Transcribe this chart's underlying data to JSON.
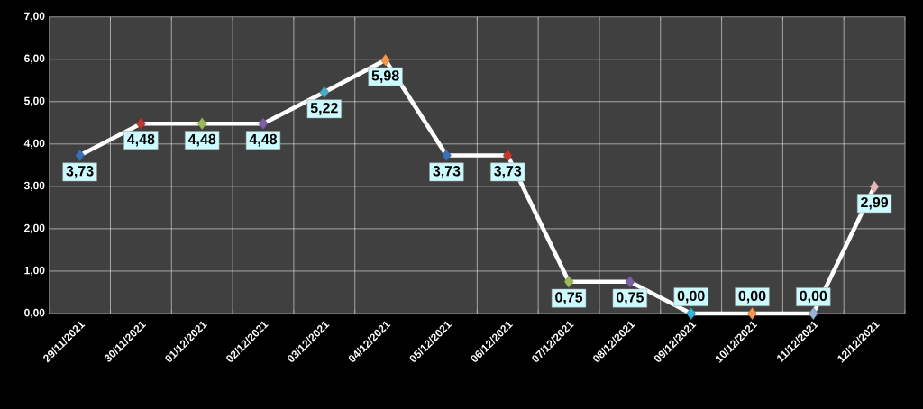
{
  "chart_data": {
    "type": "line",
    "categories": [
      "29/11/2021",
      "30/11/2021",
      "01/12/2021",
      "02/12/2021",
      "03/12/2021",
      "04/12/2021",
      "05/12/2021",
      "06/12/2021",
      "07/12/2021",
      "08/12/2021",
      "09/12/2021",
      "10/12/2021",
      "11/12/2021",
      "12/12/2021"
    ],
    "series": [
      {
        "color": "#ffffff",
        "values": [
          3.73,
          4.48,
          4.48,
          4.48,
          5.22,
          5.98,
          3.73,
          3.73,
          0.75,
          0.75,
          0,
          0,
          0,
          2.99
        ],
        "colors": [
          "#3d6fb6",
          "#c0392b",
          "#9bbb59",
          "#7f5fa8",
          "#4bacc6",
          "#f79646",
          "#3d6fb6",
          "#c0392b",
          "#9bbb59",
          "#7f5fa8",
          "#31b6e0",
          "#f79646",
          "#95b3d7",
          "#e6b9b8"
        ],
        "value_labels": [
          "3,73",
          "4,48",
          "4,48",
          "4,48",
          "5,22",
          "5,98",
          "3,73",
          "3,73",
          "0,75",
          "0,75",
          "0,00",
          "0,00",
          "0,00",
          "2,99"
        ]
      }
    ],
    "ylim": [
      0,
      7
    ],
    "yticks": [
      {
        "value": 0,
        "label": "0,00"
      },
      {
        "value": 1,
        "label": "1,00"
      },
      {
        "value": 2,
        "label": "2,00"
      },
      {
        "value": 3,
        "label": "3,00"
      },
      {
        "value": 4,
        "label": "4,00"
      },
      {
        "value": 5,
        "label": "5,00"
      },
      {
        "value": 6,
        "label": "6,00"
      },
      {
        "value": 7,
        "label": "7,00"
      }
    ],
    "grid": true,
    "marker": "diamond",
    "line_style": "solid"
  }
}
